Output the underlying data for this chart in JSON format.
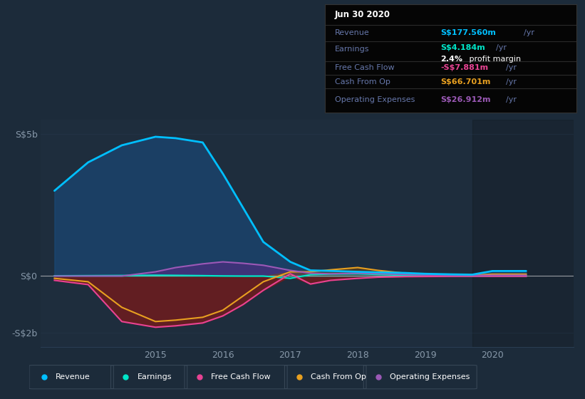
{
  "bg_color": "#1c2b3a",
  "plot_bg_color": "#1e2d3d",
  "grid_color": "#2a3d52",
  "years": [
    2013.5,
    2014.0,
    2014.5,
    2015.0,
    2015.3,
    2015.7,
    2016.0,
    2016.3,
    2016.6,
    2017.0,
    2017.3,
    2017.6,
    2018.0,
    2018.3,
    2018.7,
    2019.0,
    2019.4,
    2019.7,
    2020.0,
    2020.5
  ],
  "revenue": [
    3000,
    4000,
    4600,
    4900,
    4850,
    4700,
    3600,
    2400,
    1200,
    500,
    200,
    180,
    150,
    130,
    110,
    80,
    60,
    50,
    177,
    178
  ],
  "earnings": [
    10,
    15,
    20,
    30,
    25,
    15,
    5,
    0,
    0,
    -80,
    50,
    70,
    80,
    55,
    25,
    15,
    10,
    5,
    4,
    4
  ],
  "free_cash_flow": [
    -150,
    -300,
    -1600,
    -1800,
    -1750,
    -1650,
    -1400,
    -1000,
    -500,
    80,
    -280,
    -150,
    -80,
    -40,
    -20,
    -15,
    -10,
    -8,
    -8,
    -8
  ],
  "cash_from_op": [
    -80,
    -200,
    -1100,
    -1600,
    -1550,
    -1450,
    -1200,
    -700,
    -200,
    150,
    150,
    220,
    300,
    200,
    100,
    60,
    40,
    30,
    67,
    67
  ],
  "operating_expenses": [
    0,
    0,
    0,
    150,
    300,
    430,
    500,
    450,
    380,
    200,
    100,
    80,
    100,
    85,
    60,
    40,
    25,
    20,
    27,
    27
  ],
  "revenue_color": "#00bfff",
  "earnings_color": "#00e5c8",
  "fcf_color": "#e84393",
  "cashop_color": "#e8a020",
  "opex_color": "#9b59b6",
  "revenue_fill": "#1a4a7a",
  "neg_fill": "#7a1a1a",
  "opex_fill": "#5a2a8a",
  "cashop_fill_pos": "#7a5010",
  "earnings_fill": "#1a5a5a",
  "ylim_min": -2500,
  "ylim_max": 5500,
  "xticks": [
    2015,
    2016,
    2017,
    2018,
    2019,
    2020
  ],
  "text_color": "#8899aa",
  "highlight_start": 2019.7,
  "info_title": "Jun 30 2020",
  "info_revenue_label": "Revenue",
  "info_revenue_val": "S$177.560m",
  "info_earnings_label": "Earnings",
  "info_earnings_val": "S$4.184m",
  "info_profit_margin": "2.4%",
  "info_fcf_label": "Free Cash Flow",
  "info_fcf_val": "-S$7.881m",
  "info_cashop_label": "Cash From Op",
  "info_cashop_val": "S$66.701m",
  "info_opex_label": "Operating Expenses",
  "info_opex_val": "S$26.912m",
  "legend_items": [
    {
      "label": "Revenue",
      "color": "#00bfff"
    },
    {
      "label": "Earnings",
      "color": "#00e5c8"
    },
    {
      "label": "Free Cash Flow",
      "color": "#e84393"
    },
    {
      "label": "Cash From Op",
      "color": "#e8a020"
    },
    {
      "label": "Operating Expenses",
      "color": "#9b59b6"
    }
  ]
}
